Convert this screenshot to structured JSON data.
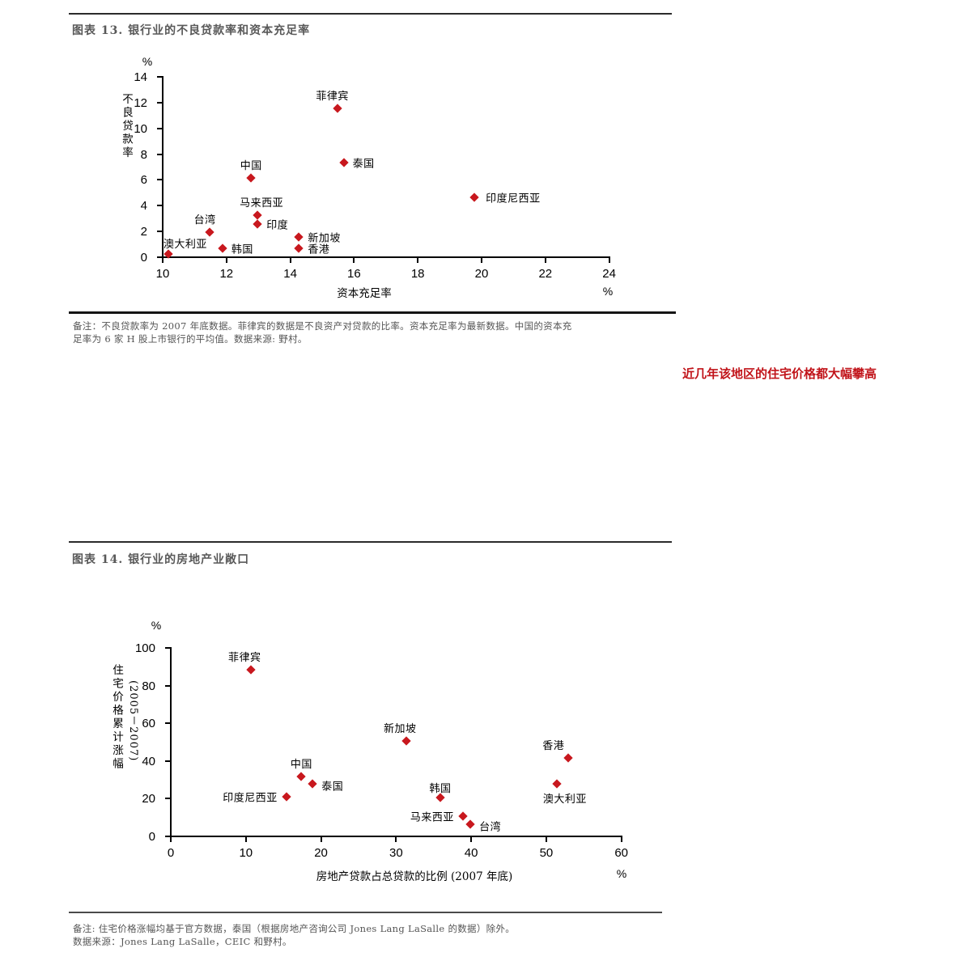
{
  "page": {
    "figure13_title": "图表 13. 银行业的不良贷款率和资本充足率",
    "figure13_note_lines": [
      "备注：不良贷款率为 2007 年底数据。菲律宾的数据是不良资产对贷款的比率。资本充足率为最新数据。中国的资本充",
      "足率为 6 家 H 股上市银行的平均值。数据来源: 野村。"
    ],
    "margin_note": "近几年该地区的住宅价格都大幅攀高",
    "figure14_title": "图表 14. 银行业的房地产业敞口",
    "figure14_note_lines": [
      "备注: 住宅价格涨幅均基于官方数据，泰国（根据房地产咨询公司 Jones Lang LaSalle 的数据）除外。",
      "数据来源：Jones Lang LaSalle，CEIC 和野村。"
    ]
  },
  "chart_data": [
    {
      "type": "scatter",
      "title": "图表 13. 银行业的不良贷款率和资本充足率",
      "xlabel": "资本充足率",
      "ylabel": "不良贷款率",
      "x_unit": "%",
      "y_unit": "%",
      "xlim": [
        10,
        24
      ],
      "ylim": [
        0,
        14
      ],
      "x_ticks": [
        10,
        12,
        14,
        16,
        18,
        20,
        22,
        24
      ],
      "y_ticks": [
        0,
        2,
        4,
        6,
        8,
        10,
        12,
        14
      ],
      "grid": false,
      "marker_color": "#c8181e",
      "points": [
        {
          "label": "澳大利亚",
          "x": 10.2,
          "y": 0.2,
          "anchor": "above-right"
        },
        {
          "label": "台湾",
          "x": 11.5,
          "y": 1.9,
          "anchor": "above",
          "dx": -6
        },
        {
          "label": "韩国",
          "x": 11.9,
          "y": 0.6,
          "anchor": "right"
        },
        {
          "label": "中国",
          "x": 12.8,
          "y": 6.1,
          "anchor": "above"
        },
        {
          "label": "马来西亚",
          "x": 13.0,
          "y": 3.2,
          "anchor": "above",
          "dx": 5
        },
        {
          "label": "印度",
          "x": 13.0,
          "y": 2.5,
          "anchor": "right"
        },
        {
          "label": "新加坡",
          "x": 14.3,
          "y": 1.5,
          "anchor": "right"
        },
        {
          "label": "香港",
          "x": 14.3,
          "y": 0.6,
          "anchor": "right"
        },
        {
          "label": "菲律宾",
          "x": 15.5,
          "y": 11.5,
          "anchor": "above",
          "dx": -6
        },
        {
          "label": "泰国",
          "x": 15.7,
          "y": 7.3,
          "anchor": "right"
        },
        {
          "label": "印度尼西亚",
          "x": 19.8,
          "y": 4.6,
          "anchor": "right",
          "dx": 3
        }
      ]
    },
    {
      "type": "scatter",
      "title": "图表 14. 银行业的房地产业敞口",
      "xlabel": "房地产贷款占总贷款的比例 (2007 年底)",
      "ylabel": "住宅价格累计涨幅",
      "ylabel_sub": "(2005－2007)",
      "x_unit": "%",
      "y_unit": "%",
      "xlim": [
        0,
        60
      ],
      "ylim": [
        0,
        100
      ],
      "x_ticks": [
        0,
        10,
        20,
        30,
        40,
        50,
        60
      ],
      "y_ticks": [
        0,
        20,
        40,
        60,
        80,
        100
      ],
      "grid": false,
      "marker_color": "#c8181e",
      "points": [
        {
          "label": "菲律宾",
          "x": 10.8,
          "y": 88,
          "anchor": "above",
          "dx": -8
        },
        {
          "label": "印度尼西亚",
          "x": 15.5,
          "y": 20.5,
          "anchor": "left"
        },
        {
          "label": "中国",
          "x": 17.5,
          "y": 31,
          "anchor": "above"
        },
        {
          "label": "泰国",
          "x": 19,
          "y": 27.5,
          "anchor": "right",
          "dy": 2
        },
        {
          "label": "新加坡",
          "x": 31.5,
          "y": 50,
          "anchor": "above",
          "dx": -8
        },
        {
          "label": "韩国",
          "x": 36,
          "y": 20,
          "anchor": "above",
          "dy": 4
        },
        {
          "label": "马来西亚",
          "x": 39,
          "y": 10,
          "anchor": "left"
        },
        {
          "label": "台湾",
          "x": 40,
          "y": 6,
          "anchor": "right",
          "dy": 2
        },
        {
          "label": "澳大利亚",
          "x": 51.5,
          "y": 27.5,
          "anchor": "below",
          "dx": 10
        },
        {
          "label": "香港",
          "x": 53,
          "y": 41,
          "anchor": "above",
          "dx": -18
        }
      ]
    }
  ]
}
